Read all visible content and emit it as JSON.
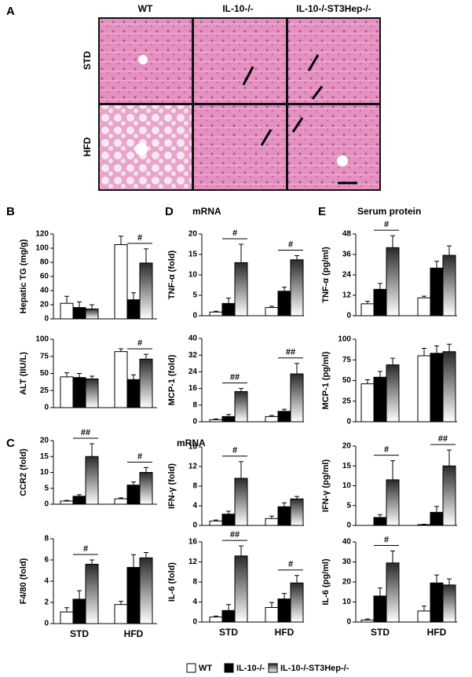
{
  "panel_labels": [
    "A",
    "B",
    "C",
    "D",
    "E"
  ],
  "histology": {
    "columns": [
      "WT",
      "IL-10-/-",
      "IL-10-/-ST3Hep-/-"
    ],
    "rows": [
      "STD",
      "HFD"
    ]
  },
  "section_titles": [
    "mRNA",
    "mRNA",
    "Serum protein"
  ],
  "legend": [
    {
      "name": "WT",
      "color": "#ffffff"
    },
    {
      "name": "IL-10-/-",
      "color": "#000000"
    },
    {
      "name": "IL-10-/-ST3Hep-/-",
      "color": "#333333",
      "gradient": true
    }
  ],
  "chart_data": [
    {
      "type": "bar",
      "ylabel": "Hepatic TG (mg/g)",
      "ylim": [
        0,
        120
      ],
      "yticks": [
        0,
        20,
        40,
        60,
        80,
        100,
        120
      ],
      "categories": [
        null,
        null
      ],
      "series": [
        {
          "values": [
            22,
            105
          ],
          "errors": [
            10,
            12
          ]
        },
        {
          "values": [
            16,
            27
          ],
          "errors": [
            8,
            10
          ]
        },
        {
          "values": [
            14,
            79
          ],
          "errors": [
            6,
            20
          ]
        }
      ],
      "annotations": [
        {
          "text": "#",
          "category": 1
        }
      ]
    },
    {
      "type": "bar",
      "ylabel": "ALT (IIU/L)",
      "ylim": [
        0,
        100
      ],
      "yticks": [
        0,
        25,
        50,
        75,
        100
      ],
      "categories": [
        null,
        null
      ],
      "series": [
        {
          "values": [
            45,
            82
          ],
          "errors": [
            6,
            4
          ]
        },
        {
          "values": [
            44,
            41
          ],
          "errors": [
            6,
            7
          ]
        },
        {
          "values": [
            42,
            71
          ],
          "errors": [
            4,
            7
          ]
        }
      ],
      "annotations": [
        {
          "text": "#",
          "category": 1
        }
      ]
    },
    {
      "type": "bar",
      "ylabel": "CCR2 (fold)",
      "ylim": [
        0,
        20
      ],
      "yticks": [
        0,
        5,
        10,
        15,
        20
      ],
      "categories": [
        null,
        null
      ],
      "series": [
        {
          "values": [
            1,
            1.7
          ],
          "errors": [
            0.2,
            0.3
          ]
        },
        {
          "values": [
            2.5,
            6
          ],
          "errors": [
            0.5,
            1
          ]
        },
        {
          "values": [
            15,
            10
          ],
          "errors": [
            4,
            1.5
          ]
        }
      ],
      "annotations": [
        {
          "text": "##",
          "category": 0
        },
        {
          "text": "#",
          "category": 1
        }
      ]
    },
    {
      "type": "bar",
      "ylabel": "F4/80 (fold)",
      "ylim": [
        0,
        8
      ],
      "yticks": [
        0,
        2,
        4,
        6,
        8
      ],
      "categories": [
        "STD",
        "HFD"
      ],
      "series": [
        {
          "values": [
            1.1,
            1.8
          ],
          "errors": [
            0.4,
            0.3
          ]
        },
        {
          "values": [
            2.3,
            5.3
          ],
          "errors": [
            0.8,
            1.2
          ]
        },
        {
          "values": [
            5.6,
            6.2
          ],
          "errors": [
            0.4,
            0.5
          ]
        }
      ],
      "annotations": [
        {
          "text": "#",
          "category": 0
        }
      ]
    },
    {
      "type": "bar",
      "ylabel": "TNF-α (fold)",
      "ylim": [
        0,
        20
      ],
      "yticks": [
        0,
        5,
        10,
        15,
        20
      ],
      "categories": [
        null,
        null
      ],
      "series": [
        {
          "values": [
            0.9,
            2
          ],
          "errors": [
            0.2,
            0.3
          ]
        },
        {
          "values": [
            3,
            6
          ],
          "errors": [
            1.3,
            1
          ]
        },
        {
          "values": [
            13,
            13.7
          ],
          "errors": [
            4.5,
            1
          ]
        }
      ],
      "annotations": [
        {
          "text": "#",
          "category": 0
        },
        {
          "text": "#",
          "category": 1
        }
      ]
    },
    {
      "type": "bar",
      "ylabel": "MCP-1 (fold)",
      "ylim": [
        0,
        40
      ],
      "yticks": [
        0,
        8,
        16,
        24,
        32,
        40
      ],
      "categories": [
        null,
        null
      ],
      "series": [
        {
          "values": [
            1,
            2.5
          ],
          "errors": [
            0.3,
            0.5
          ]
        },
        {
          "values": [
            2.5,
            5
          ],
          "errors": [
            1,
            1
          ]
        },
        {
          "values": [
            14.5,
            23
          ],
          "errors": [
            1.5,
            5
          ]
        }
      ],
      "annotations": [
        {
          "text": "##",
          "category": 0
        },
        {
          "text": "##",
          "category": 1
        }
      ]
    },
    {
      "type": "bar",
      "ylabel": "IFN-γ (fold)",
      "ylim": [
        0,
        16
      ],
      "yticks": [
        0,
        4,
        8,
        12,
        16
      ],
      "categories": [
        null,
        null
      ],
      "series": [
        {
          "values": [
            0.9,
            1.4
          ],
          "errors": [
            0.2,
            0.5
          ]
        },
        {
          "values": [
            2.3,
            3.8
          ],
          "errors": [
            0.6,
            0.8
          ]
        },
        {
          "values": [
            9.6,
            5.4
          ],
          "errors": [
            3.4,
            0.5
          ]
        }
      ],
      "annotations": [
        {
          "text": "#",
          "category": 0
        }
      ]
    },
    {
      "type": "bar",
      "ylabel": "IL-6 (fold)",
      "ylim": [
        0,
        16
      ],
      "yticks": [
        0,
        4,
        8,
        12,
        16
      ],
      "categories": [
        "STD",
        "HFD"
      ],
      "series": [
        {
          "values": [
            1,
            2.9
          ],
          "errors": [
            0.2,
            1
          ]
        },
        {
          "values": [
            2.3,
            4.6
          ],
          "errors": [
            1.2,
            1.1
          ]
        },
        {
          "values": [
            13.2,
            7.8
          ],
          "errors": [
            2,
            1.5
          ]
        }
      ],
      "annotations": [
        {
          "text": "##",
          "category": 0
        },
        {
          "text": "#",
          "category": 1
        }
      ]
    },
    {
      "type": "bar",
      "ylabel": "TNF-α (pg/ml)",
      "ylim": [
        0,
        48
      ],
      "yticks": [
        0,
        12,
        24,
        36,
        48
      ],
      "categories": [
        null,
        null
      ],
      "series": [
        {
          "values": [
            7,
            10.5
          ],
          "errors": [
            1.5,
            1
          ]
        },
        {
          "values": [
            15.5,
            28
          ],
          "errors": [
            3.5,
            4
          ]
        },
        {
          "values": [
            40,
            35.5
          ],
          "errors": [
            7,
            5.5
          ]
        }
      ],
      "annotations": [
        {
          "text": "#",
          "category": 0
        }
      ]
    },
    {
      "type": "bar",
      "ylabel": "MCP-1 (pg/ml)",
      "ylim": [
        0,
        100
      ],
      "yticks": [
        0,
        25,
        50,
        75,
        100
      ],
      "categories": [
        null,
        null
      ],
      "series": [
        {
          "values": [
            46,
            80
          ],
          "errors": [
            5,
            9
          ]
        },
        {
          "values": [
            54,
            83
          ],
          "errors": [
            7,
            9
          ]
        },
        {
          "values": [
            69,
            85
          ],
          "errors": [
            8,
            9
          ]
        }
      ],
      "annotations": []
    },
    {
      "type": "bar",
      "ylabel": "IFN-γ (pg/ml)",
      "ylim": [
        0,
        20
      ],
      "yticks": [
        0,
        5,
        10,
        15,
        20
      ],
      "categories": [
        null,
        null
      ],
      "series": [
        {
          "values": [
            0,
            0.2
          ],
          "errors": [
            0,
            0.1
          ]
        },
        {
          "values": [
            2,
            3.3
          ],
          "errors": [
            0.7,
            1.5
          ]
        },
        {
          "values": [
            11.5,
            15
          ],
          "errors": [
            4.8,
            4
          ]
        }
      ],
      "annotations": [
        {
          "text": "#",
          "category": 0
        },
        {
          "text": "##",
          "category": 1
        }
      ]
    },
    {
      "type": "bar",
      "ylabel": "IL-6 (pg/ml)",
      "ylim": [
        0,
        40
      ],
      "yticks": [
        0,
        10,
        20,
        30,
        40
      ],
      "categories": [
        "STD",
        "HFD"
      ],
      "series": [
        {
          "values": [
            1,
            5.5
          ],
          "errors": [
            0.5,
            2.5
          ]
        },
        {
          "values": [
            13,
            19.5
          ],
          "errors": [
            4,
            4
          ]
        },
        {
          "values": [
            29.5,
            18.5
          ],
          "errors": [
            6,
            3
          ]
        }
      ],
      "annotations": [
        {
          "text": "#",
          "category": 0
        }
      ]
    }
  ]
}
